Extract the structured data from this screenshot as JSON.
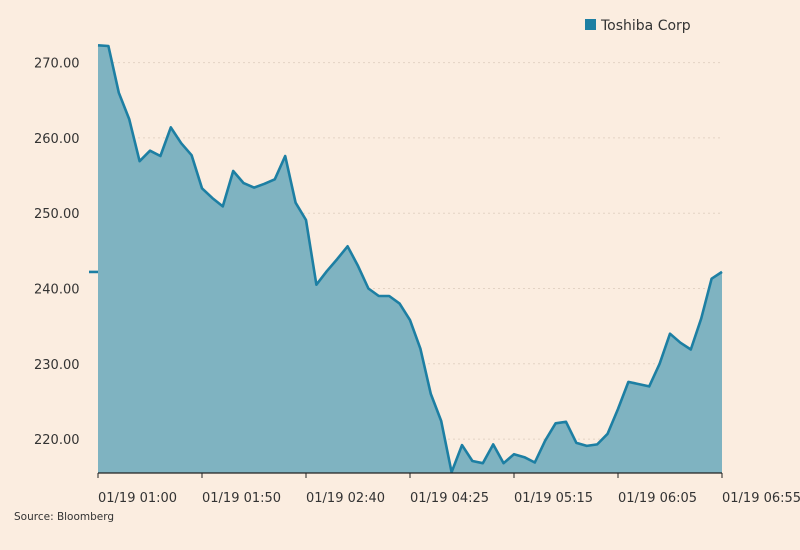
{
  "chart_data": {
    "type": "area",
    "legend": {
      "label": "Toshiba Corp",
      "color": "#1d7fa3",
      "placement": "top-right"
    },
    "source": "Source: Bloomberg",
    "ylim": [
      215.5,
      273
    ],
    "yticks": [
      "220.00",
      "230.00",
      "240.00",
      "250.00",
      "260.00",
      "270.00"
    ],
    "ytick_values": [
      220,
      230,
      240,
      250,
      260,
      270
    ],
    "grid": true,
    "xlim": [
      0,
      60
    ],
    "xticks": [
      {
        "label": "01/19 01:00",
        "index": 0
      },
      {
        "label": "01/19 01:50",
        "index": 10
      },
      {
        "label": "01/19 02:40",
        "index": 20
      },
      {
        "label": "01/19 04:25",
        "index": 30
      },
      {
        "label": "01/19 05:15",
        "index": 40
      },
      {
        "label": "01/19 06:05",
        "index": 50
      },
      {
        "label": "01/19 06:55",
        "index": 60
      }
    ],
    "series": [
      {
        "name": "Toshiba Corp",
        "line_color": "#1d7fa3",
        "fill_color": "#7fb3c1",
        "values": [
          272.3,
          272.2,
          266.0,
          262.5,
          256.9,
          258.3,
          257.6,
          261.4,
          259.3,
          257.7,
          253.3,
          252.0,
          250.9,
          255.6,
          254.0,
          253.4,
          253.9,
          254.5,
          257.6,
          251.4,
          249.1,
          240.5,
          242.3,
          243.9,
          245.6,
          243.0,
          240.0,
          239.0,
          239.0,
          238.0,
          235.8,
          232.0,
          226.0,
          222.4,
          215.6,
          219.2,
          217.1,
          216.8,
          219.3,
          216.8,
          218.0,
          217.6,
          216.9,
          219.8,
          222.1,
          222.3,
          219.5,
          219.1,
          219.3,
          220.7,
          224.0,
          227.6,
          227.3,
          227.0,
          230.0,
          234.0,
          232.8,
          231.9,
          236.0,
          241.3,
          242.2
        ]
      }
    ],
    "last_value_marker": 242.2
  }
}
